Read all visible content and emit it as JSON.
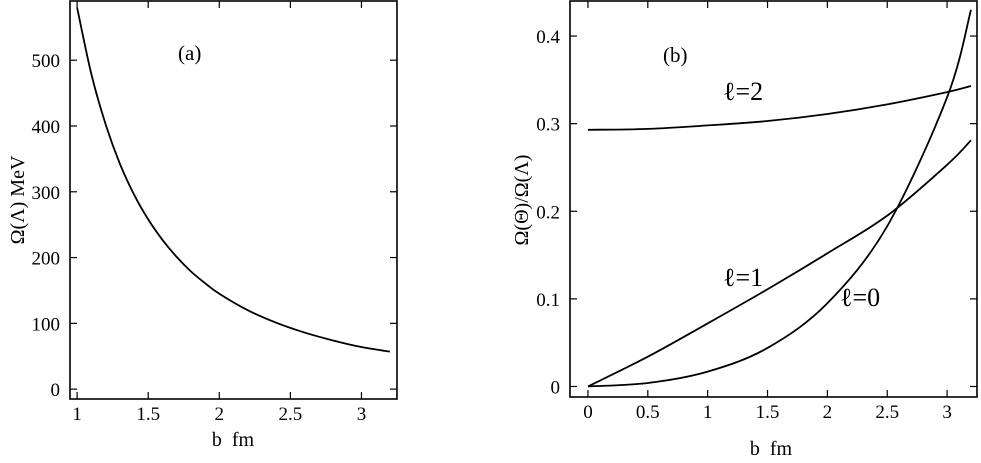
{
  "chart_data": [
    {
      "type": "line",
      "panel_label": "(a)",
      "xlabel": "b  fm",
      "ylabel": "Ω(Λ) MeV",
      "xlim": [
        0.95,
        3.25
      ],
      "ylim": [
        -15,
        590
      ],
      "x_ticks": [
        "1",
        "1.5",
        "2",
        "2.5",
        "3"
      ],
      "y_ticks": [
        "0",
        "100",
        "200",
        "300",
        "400",
        "500"
      ],
      "grid": false,
      "series": [
        {
          "x": [
            1.0,
            1.1,
            1.2,
            1.3,
            1.4,
            1.5,
            1.6,
            1.7,
            1.8,
            1.9,
            2.0,
            2.2,
            2.4,
            2.6,
            2.8,
            3.0,
            3.2
          ],
          "values": [
            580,
            479,
            403,
            343,
            296,
            258,
            227,
            201,
            179,
            161,
            145,
            120,
            101,
            86,
            74,
            64,
            57
          ]
        }
      ]
    },
    {
      "type": "line",
      "panel_label": "(b)",
      "xlabel": "b  fm",
      "ylabel": "Ω(Θ)/Ω(Λ)",
      "xlim": [
        -0.15,
        3.25
      ],
      "ylim": [
        -0.012,
        0.44
      ],
      "x_ticks": [
        "0",
        "0.5",
        "1",
        "1.5",
        "2",
        "2.5",
        "3"
      ],
      "y_ticks": [
        "0",
        "0.1",
        "0.2",
        "0.3",
        "0.4"
      ],
      "grid": false,
      "series": [
        {
          "name": "ℓ=2",
          "x": [
            0,
            0.5,
            1.0,
            1.5,
            2.0,
            2.5,
            3.0,
            3.2
          ],
          "values": [
            0.293,
            0.294,
            0.298,
            0.303,
            0.311,
            0.322,
            0.336,
            0.343
          ]
        },
        {
          "name": "ℓ=1",
          "x": [
            0,
            0.5,
            1.0,
            1.5,
            2.0,
            2.5,
            3.0,
            3.2
          ],
          "values": [
            0.0,
            0.034,
            0.072,
            0.111,
            0.152,
            0.195,
            0.253,
            0.281
          ]
        },
        {
          "name": "ℓ=0",
          "x": [
            0,
            0.5,
            1.0,
            1.5,
            2.0,
            2.5,
            3.0,
            3.2
          ],
          "values": [
            0.0,
            0.004,
            0.017,
            0.044,
            0.095,
            0.183,
            0.33,
            0.43
          ]
        }
      ]
    }
  ]
}
